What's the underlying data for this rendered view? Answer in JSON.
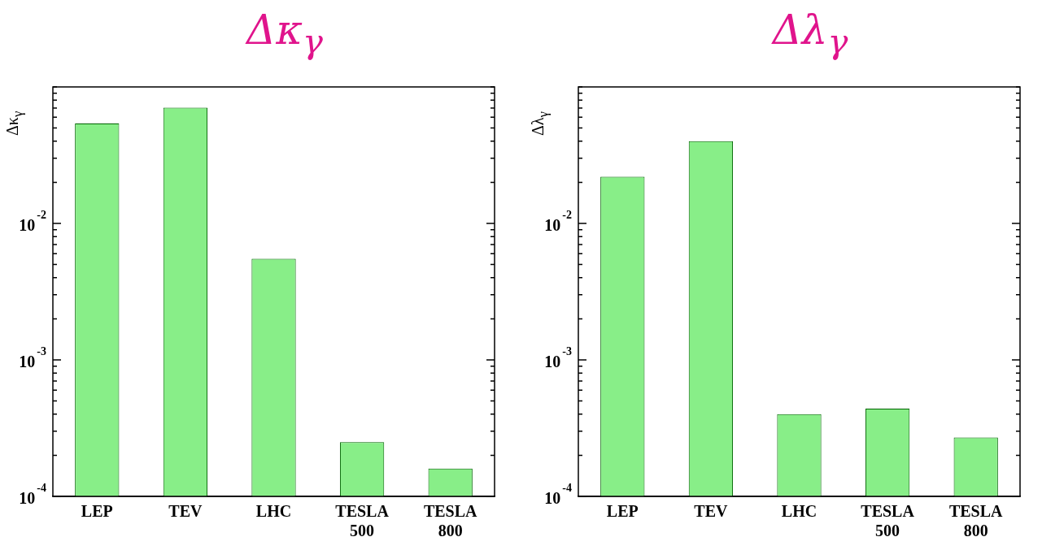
{
  "chart_data": [
    {
      "type": "bar",
      "title": "Δκ$_{γ}$",
      "ylabel": "Δκ$_{γ}$",
      "categories": [
        "LEP",
        "TEV",
        "LHC",
        "TESLA 500",
        "TESLA 800"
      ],
      "values": [
        0.054,
        0.0706,
        0.0055,
        0.00025,
        0.00016
      ],
      "color": "#88ee88",
      "log": "y",
      "ylim": [
        0.0001,
        0.1
      ],
      "yticks": [
        {
          "value": 0.0001,
          "label": "10$^{-4}$"
        },
        {
          "value": 0.0002,
          "label": null
        },
        {
          "value": 0.0003,
          "label": null
        },
        {
          "value": 0.0004,
          "label": null
        },
        {
          "value": 0.0005,
          "label": null
        },
        {
          "value": 0.0006,
          "label": null
        },
        {
          "value": 0.0007,
          "label": null
        },
        {
          "value": 0.0008,
          "label": null
        },
        {
          "value": 0.0009,
          "label": null
        },
        {
          "value": 0.001,
          "label": "10$^{-3}$"
        },
        {
          "value": 0.002,
          "label": null
        },
        {
          "value": 0.003,
          "label": null
        },
        {
          "value": 0.004,
          "label": null
        },
        {
          "value": 0.005,
          "label": null
        },
        {
          "value": 0.006,
          "label": null
        },
        {
          "value": 0.007,
          "label": null
        },
        {
          "value": 0.008,
          "label": null
        },
        {
          "value": 0.009,
          "label": null
        },
        {
          "value": 0.01,
          "label": "10$^{-2}$"
        },
        {
          "value": 0.02,
          "label": null
        },
        {
          "value": 0.03,
          "label": null
        },
        {
          "value": 0.04,
          "label": null
        },
        {
          "value": 0.05,
          "label": null
        },
        {
          "value": 0.06,
          "label": null
        },
        {
          "value": 0.07,
          "label": null
        },
        {
          "value": 0.08,
          "label": null
        },
        {
          "value": 0.09,
          "label": null
        },
        {
          "value": 0.1,
          "label": null
        }
      ],
      "grid": false,
      "legend": false
    },
    {
      "type": "bar",
      "title": "Δλ$_{γ}$",
      "ylabel": "Δλ$_{γ}$",
      "categories": [
        "LEP",
        "TEV",
        "LHC",
        "TESLA 500",
        "TESLA 800"
      ],
      "values": [
        0.022,
        0.04,
        0.0004,
        0.00044,
        0.00027
      ],
      "color": "#88ee88",
      "log": "y",
      "ylim": [
        0.0001,
        0.1
      ],
      "yticks": [
        {
          "value": 0.0001,
          "label": "10$^{-4}$"
        },
        {
          "value": 0.0002,
          "label": null
        },
        {
          "value": 0.0003,
          "label": null
        },
        {
          "value": 0.0004,
          "label": null
        },
        {
          "value": 0.0005,
          "label": null
        },
        {
          "value": 0.0006,
          "label": null
        },
        {
          "value": 0.0007,
          "label": null
        },
        {
          "value": 0.0008,
          "label": null
        },
        {
          "value": 0.0009,
          "label": null
        },
        {
          "value": 0.001,
          "label": "10$^{-3}$"
        },
        {
          "value": 0.002,
          "label": null
        },
        {
          "value": 0.003,
          "label": null
        },
        {
          "value": 0.004,
          "label": null
        },
        {
          "value": 0.005,
          "label": null
        },
        {
          "value": 0.006,
          "label": null
        },
        {
          "value": 0.007,
          "label": null
        },
        {
          "value": 0.008,
          "label": null
        },
        {
          "value": 0.009,
          "label": null
        },
        {
          "value": 0.01,
          "label": "10$^{-2}$"
        },
        {
          "value": 0.02,
          "label": null
        },
        {
          "value": 0.03,
          "label": null
        },
        {
          "value": 0.04,
          "label": null
        },
        {
          "value": 0.05,
          "label": null
        },
        {
          "value": 0.06,
          "label": null
        },
        {
          "value": 0.07,
          "label": null
        },
        {
          "value": 0.08,
          "label": null
        },
        {
          "value": 0.09,
          "label": null
        },
        {
          "value": 0.1,
          "label": null
        }
      ],
      "grid": false,
      "legend": false
    }
  ]
}
